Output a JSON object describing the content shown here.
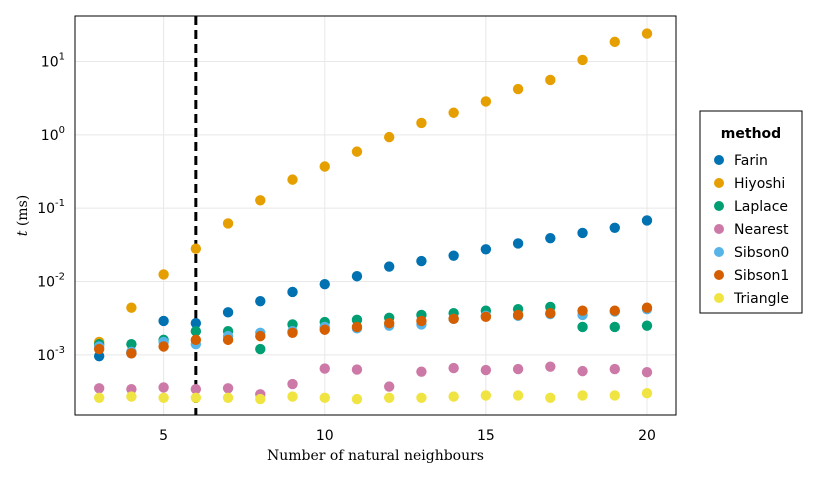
{
  "chart_data": {
    "type": "scatter",
    "title": "",
    "xlabel": "Number of natural neighbours",
    "ylabel_italic": "t",
    "ylabel_rest": " (ms)",
    "x_ticks": [
      5,
      10,
      15,
      20
    ],
    "y_scale": "log",
    "y_ticks": [
      {
        "exp": -3,
        "base": "10",
        "power": "-3"
      },
      {
        "exp": -2,
        "base": "10",
        "power": "-2"
      },
      {
        "exp": -1,
        "base": "10",
        "power": "-1"
      },
      {
        "exp": 0,
        "base": "10",
        "power": "0"
      },
      {
        "exp": 1,
        "base": "10",
        "power": "1"
      }
    ],
    "xlim": [
      2.25,
      20.9
    ],
    "ylim_log10": [
      -3.82,
      1.62
    ],
    "grid": true,
    "vline_x": 6,
    "legend": {
      "title": "method",
      "position": "right"
    },
    "series": [
      {
        "name": "Farin",
        "color": "#0072B2",
        "x": [
          3,
          4,
          5,
          6,
          7,
          8,
          9,
          10,
          11,
          12,
          13,
          14,
          15,
          16,
          17,
          18,
          19,
          20
        ],
        "y": [
          0.00096,
          0.00105,
          0.0029,
          0.0027,
          0.0038,
          0.0054,
          0.0072,
          0.0092,
          0.0118,
          0.016,
          0.019,
          0.0225,
          0.0275,
          0.033,
          0.039,
          0.046,
          0.054,
          0.068
        ]
      },
      {
        "name": "Hiyoshi",
        "color": "#E69F00",
        "x": [
          3,
          4,
          5,
          6,
          7,
          8,
          9,
          10,
          11,
          12,
          13,
          14,
          15,
          16,
          17,
          18,
          19,
          20
        ],
        "y": [
          0.0015,
          0.0044,
          0.0125,
          0.028,
          0.062,
          0.128,
          0.245,
          0.37,
          0.59,
          0.93,
          1.45,
          2.0,
          2.85,
          4.2,
          5.6,
          10.5,
          18.5,
          24.0
        ]
      },
      {
        "name": "Laplace",
        "color": "#009E73",
        "x": [
          3,
          4,
          5,
          6,
          7,
          8,
          9,
          10,
          11,
          12,
          13,
          14,
          15,
          16,
          17,
          18,
          19,
          20
        ],
        "y": [
          0.0014,
          0.0014,
          0.0016,
          0.0021,
          0.0021,
          0.0012,
          0.0026,
          0.0028,
          0.003,
          0.0032,
          0.0035,
          0.0037,
          0.004,
          0.0042,
          0.0045,
          0.0024,
          0.0024,
          0.0025
        ]
      },
      {
        "name": "Nearest",
        "color": "#CC79A7",
        "x": [
          3,
          4,
          5,
          6,
          7,
          8,
          9,
          10,
          11,
          12,
          13,
          14,
          15,
          16,
          17,
          18,
          19,
          20
        ],
        "y": [
          0.00035,
          0.00034,
          0.00036,
          0.00034,
          0.00035,
          0.00029,
          0.0004,
          0.00065,
          0.00063,
          0.00037,
          0.00059,
          0.00066,
          0.00062,
          0.00064,
          0.00069,
          0.0006,
          0.00064,
          0.00058
        ]
      },
      {
        "name": "Sibson0",
        "color": "#56B4E9",
        "x": [
          3,
          4,
          5,
          6,
          7,
          8,
          9,
          10,
          11,
          12,
          13,
          14,
          15,
          16,
          17,
          18,
          19,
          20
        ],
        "y": [
          0.0013,
          0.0011,
          0.0015,
          0.0014,
          0.0018,
          0.002,
          0.0021,
          0.0024,
          0.0023,
          0.0025,
          0.0026,
          0.0031,
          0.0034,
          0.0034,
          0.0036,
          0.0035,
          0.0039,
          0.0042
        ]
      },
      {
        "name": "Sibson1",
        "color": "#D55E00",
        "x": [
          3,
          4,
          5,
          6,
          7,
          8,
          9,
          10,
          11,
          12,
          13,
          14,
          15,
          16,
          17,
          18,
          19,
          20
        ],
        "y": [
          0.0012,
          0.00105,
          0.0013,
          0.0016,
          0.0016,
          0.0018,
          0.002,
          0.0022,
          0.0024,
          0.0027,
          0.0029,
          0.0031,
          0.0033,
          0.0035,
          0.0037,
          0.004,
          0.004,
          0.0044
        ]
      },
      {
        "name": "Triangle",
        "color": "#F0E442",
        "x": [
          3,
          4,
          5,
          6,
          7,
          8,
          9,
          10,
          11,
          12,
          13,
          14,
          15,
          16,
          17,
          18,
          19,
          20
        ],
        "y": [
          0.00026,
          0.00027,
          0.00026,
          0.00026,
          0.00026,
          0.00025,
          0.00027,
          0.00026,
          0.00025,
          0.00026,
          0.00026,
          0.00027,
          0.00028,
          0.00028,
          0.00026,
          0.00028,
          0.00028,
          0.0003
        ]
      }
    ]
  }
}
